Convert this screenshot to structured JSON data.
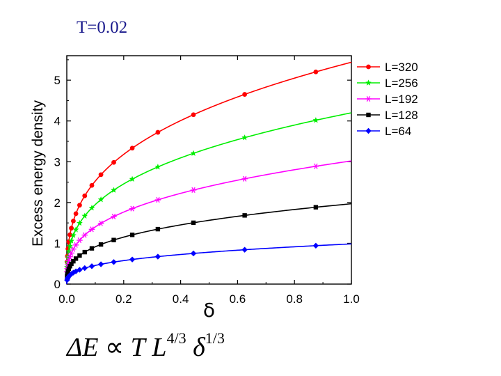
{
  "slide": {
    "title": "T=0.02",
    "formula": {
      "delta_e": "ΔE",
      "prop": "∝",
      "t": "T",
      "l": "L",
      "l_exp": "4/3",
      "delta": "δ",
      "delta_exp": "1/3"
    }
  },
  "chart_data": {
    "type": "line",
    "title": "",
    "xlabel": "δ",
    "ylabel": "Excess energy density",
    "xlim": [
      0,
      1
    ],
    "ylim": [
      0,
      5.6
    ],
    "xticks": [
      0.0,
      0.2,
      0.4,
      0.6,
      0.8,
      1.0
    ],
    "xtick_labels": [
      "0.0",
      "0.2",
      "0.4",
      "0.6",
      "0.8",
      "1.0"
    ],
    "yticks": [
      0,
      1,
      2,
      3,
      4,
      5
    ],
    "ytick_labels": [
      "0",
      "1",
      "2",
      "3",
      "4",
      "5"
    ],
    "grid": false,
    "legend": "top-right outside",
    "x_markers": [
      0.001,
      0.002,
      0.004,
      0.007,
      0.011,
      0.016,
      0.023,
      0.032,
      0.045,
      0.063,
      0.088,
      0.12,
      0.165,
      0.23,
      0.32,
      0.445,
      0.625,
      0.875
    ],
    "series": [
      {
        "name": "L=320",
        "color": "#ff0000",
        "marker": "circle",
        "coef": 5.44
      },
      {
        "name": "L=256",
        "color": "#00ee00",
        "marker": "star",
        "coef": 4.2
      },
      {
        "name": "L=192",
        "color": "#ff00ff",
        "marker": "asterisk",
        "coef": 3.02
      },
      {
        "name": "L=128",
        "color": "#000000",
        "marker": "square",
        "coef": 1.97
      },
      {
        "name": "L=64",
        "color": "#0000ff",
        "marker": "diamond",
        "coef": 0.985
      }
    ]
  }
}
